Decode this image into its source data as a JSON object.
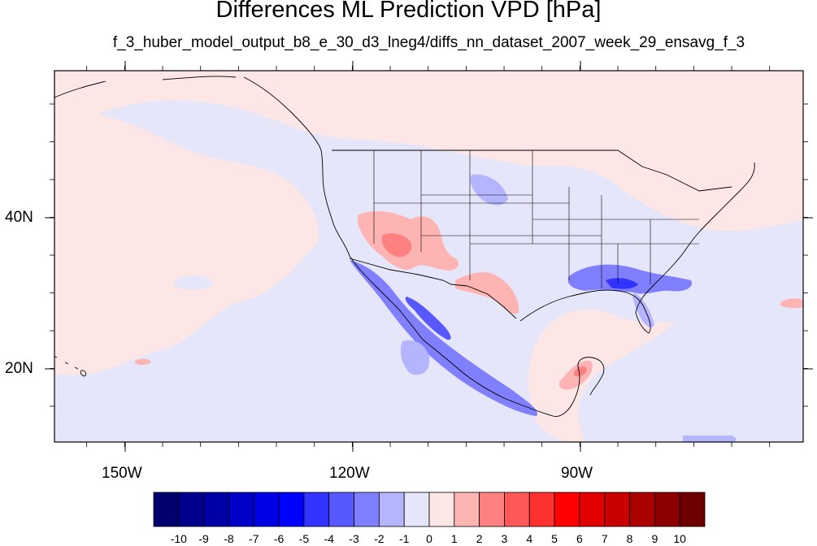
{
  "title": "Differences ML Prediction VPD [hPa]",
  "subtitle": "f_3_huber_model_output_b8_e_30_d3_lneg4/diffs_nn_dataset_2007_week_29_ensavg_f_3",
  "axes": {
    "lon_labels": [
      "150W",
      "120W",
      "90W"
    ],
    "lat_labels": [
      "40N",
      "20N"
    ]
  },
  "colorbar": {
    "labels": [
      "-10",
      "-9",
      "-8",
      "-7",
      "-6",
      "-5",
      "-4",
      "-3",
      "-2",
      "-1",
      "0",
      "1",
      "2",
      "3",
      "4",
      "5",
      "6",
      "7",
      "8",
      "9",
      "10"
    ],
    "colors": [
      "#00006e",
      "#00008c",
      "#0000a8",
      "#0000c8",
      "#0000e6",
      "#0000ff",
      "#3333ff",
      "#5858ff",
      "#8080ff",
      "#b4b4ff",
      "#e6e6fa",
      "#fde6e6",
      "#ffb4b4",
      "#ff8080",
      "#ff5858",
      "#ff3030",
      "#ff0000",
      "#e10000",
      "#c80000",
      "#aa0000",
      "#8c0000",
      "#6e0000"
    ]
  },
  "map_data": {
    "background_field": "very small positive difference (0 to 1)",
    "regions": [
      {
        "name": "pacific-negative",
        "level": "-1 to 0"
      },
      {
        "name": "gulf-negative",
        "level": "-1 to 0"
      },
      {
        "name": "southwest-positive",
        "level": "1 to 3"
      },
      {
        "name": "texas-positive",
        "level": "1 to 3"
      },
      {
        "name": "mexico-coast-negative",
        "level": "-4 to -1"
      },
      {
        "name": "southeast-negative",
        "level": "-4 to -1"
      },
      {
        "name": "yucatan-positive",
        "level": "1 to 3"
      }
    ]
  }
}
